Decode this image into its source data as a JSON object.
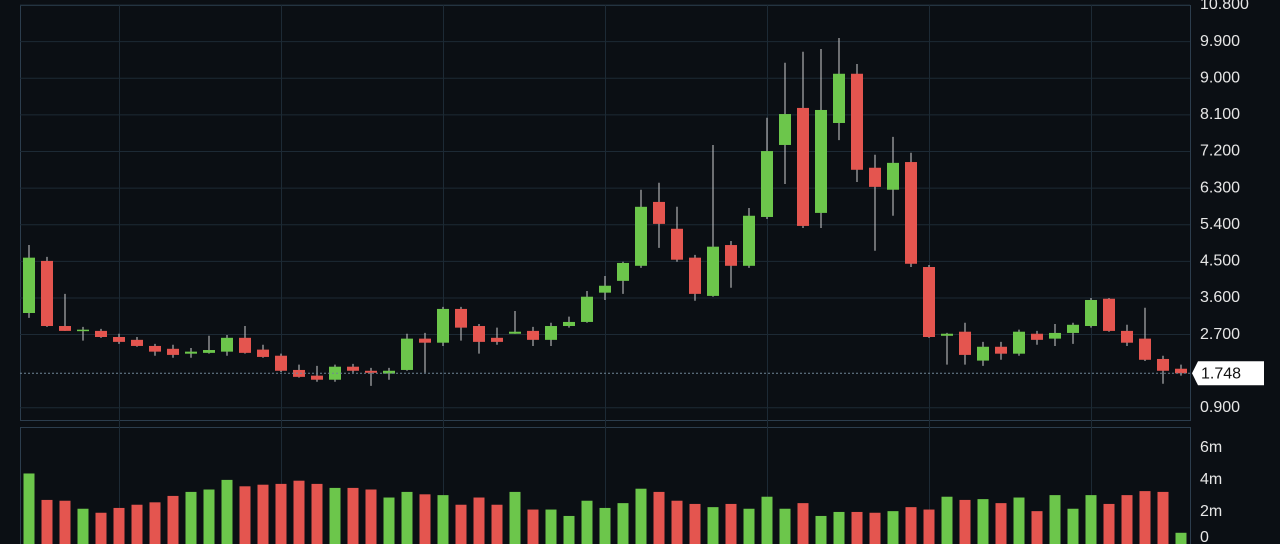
{
  "chart_data": [
    {
      "type": "candlestick",
      "open": [
        3.23,
        4.51,
        2.91,
        2.8,
        2.79,
        2.64,
        2.57,
        2.42,
        2.35,
        2.23,
        2.25,
        2.28,
        2.62,
        2.33,
        2.18,
        1.83,
        1.69,
        1.59,
        1.91,
        1.81,
        1.74,
        1.83,
        2.6,
        2.5,
        3.33,
        2.91,
        2.62,
        2.72,
        2.79,
        2.57,
        2.91,
        3.01,
        3.73,
        4.02,
        4.39,
        5.96,
        5.3,
        4.59,
        3.65,
        4.9,
        4.39,
        5.59,
        7.36,
        8.27,
        5.69,
        7.9,
        9.11,
        6.8,
        6.26,
        6.94,
        4.36,
        2.67,
        2.77,
        2.06,
        2.4,
        2.23,
        2.72,
        2.6,
        2.74,
        2.91,
        3.58,
        2.79,
        2.6,
        2.1,
        1.86
      ],
      "high": [
        4.9,
        4.61,
        3.7,
        2.89,
        2.84,
        2.72,
        2.64,
        2.47,
        2.45,
        2.37,
        2.67,
        2.69,
        2.91,
        2.45,
        2.23,
        1.96,
        1.93,
        1.96,
        1.98,
        1.88,
        1.88,
        2.72,
        2.74,
        3.38,
        3.38,
        2.96,
        2.87,
        3.28,
        2.89,
        2.99,
        3.14,
        3.77,
        4.14,
        4.49,
        6.26,
        6.43,
        5.84,
        4.66,
        7.36,
        5.0,
        5.81,
        8.03,
        9.38,
        9.65,
        9.72,
        9.99,
        9.35,
        7.12,
        7.56,
        7.17,
        4.41,
        2.74,
        2.99,
        2.52,
        2.52,
        2.82,
        2.79,
        2.96,
        2.99,
        3.6,
        3.6,
        2.94,
        3.36,
        2.18,
        1.96
      ],
      "low": [
        3.11,
        2.89,
        2.79,
        2.55,
        2.62,
        2.47,
        2.4,
        2.18,
        2.13,
        2.13,
        2.23,
        2.18,
        2.23,
        2.13,
        1.78,
        1.64,
        1.54,
        1.54,
        1.76,
        1.44,
        1.59,
        1.81,
        1.76,
        2.42,
        2.55,
        2.23,
        2.45,
        2.72,
        2.42,
        2.42,
        2.87,
        2.99,
        3.55,
        3.7,
        4.34,
        4.83,
        4.49,
        3.53,
        3.63,
        3.85,
        4.34,
        5.54,
        6.4,
        5.32,
        5.32,
        7.48,
        6.45,
        4.76,
        5.62,
        4.36,
        2.62,
        1.96,
        1.96,
        1.93,
        2.08,
        2.18,
        2.45,
        2.42,
        2.47,
        2.87,
        2.77,
        2.42,
        2.05,
        1.49,
        1.69
      ],
      "close": [
        4.59,
        2.91,
        2.79,
        2.82,
        2.64,
        2.52,
        2.42,
        2.28,
        2.2,
        2.28,
        2.32,
        2.62,
        2.25,
        2.15,
        1.81,
        1.66,
        1.59,
        1.91,
        1.81,
        1.76,
        1.81,
        2.6,
        2.5,
        3.33,
        2.87,
        2.52,
        2.52,
        2.77,
        2.57,
        2.91,
        3.01,
        3.63,
        3.9,
        4.46,
        5.84,
        5.42,
        4.54,
        3.7,
        4.86,
        4.39,
        5.62,
        7.21,
        8.12,
        5.37,
        8.22,
        9.11,
        6.75,
        6.33,
        6.92,
        4.44,
        2.64,
        2.72,
        2.2,
        2.4,
        2.23,
        2.77,
        2.57,
        2.74,
        2.94,
        3.55,
        2.79,
        2.5,
        2.08,
        1.81,
        1.748
      ],
      "up_color": "#6cc64b",
      "down_color": "#e4554f",
      "ylim": [
        0.6,
        10.8
      ],
      "yticks": [
        {
          "value": 0.9,
          "label": "0.900"
        },
        {
          "value": 2.7,
          "label": "2.700"
        },
        {
          "value": 3.6,
          "label": "3.600"
        },
        {
          "value": 4.5,
          "label": "4.500"
        },
        {
          "value": 5.4,
          "label": "5.400"
        },
        {
          "value": 6.3,
          "label": "6.300"
        },
        {
          "value": 7.2,
          "label": "7.200"
        },
        {
          "value": 8.1,
          "label": "8.100"
        },
        {
          "value": 9.0,
          "label": "9.000"
        },
        {
          "value": 9.9,
          "label": "9.900"
        },
        {
          "value": 10.8,
          "label": "10.800"
        }
      ],
      "last_price": {
        "value": 1.748,
        "label": "1.748"
      },
      "grid": true
    },
    {
      "type": "bar",
      "values": [
        4.4,
        2.75,
        2.7,
        2.2,
        1.95,
        2.25,
        2.45,
        2.6,
        3.0,
        3.25,
        3.4,
        4.0,
        3.6,
        3.7,
        3.75,
        3.95,
        3.75,
        3.5,
        3.5,
        3.4,
        2.9,
        3.25,
        3.1,
        3.05,
        2.45,
        2.9,
        2.45,
        3.25,
        2.15,
        2.15,
        1.75,
        2.7,
        2.25,
        2.55,
        3.45,
        3.25,
        2.7,
        2.5,
        2.3,
        2.5,
        2.2,
        2.95,
        2.2,
        2.55,
        1.75,
        2.0,
        2.0,
        1.95,
        2.05,
        2.3,
        2.15,
        2.95,
        2.75,
        2.8,
        2.55,
        2.9,
        2.05,
        3.05,
        2.2,
        3.05,
        2.5,
        3.05,
        3.3,
        3.25,
        0.7
      ],
      "colors": [
        "#6cc64b",
        "#e4554f",
        "#e4554f",
        "#6cc64b",
        "#e4554f",
        "#e4554f",
        "#e4554f",
        "#e4554f",
        "#e4554f",
        "#6cc64b",
        "#6cc64b",
        "#6cc64b",
        "#e4554f",
        "#e4554f",
        "#e4554f",
        "#e4554f",
        "#e4554f",
        "#6cc64b",
        "#e4554f",
        "#e4554f",
        "#6cc64b",
        "#6cc64b",
        "#e4554f",
        "#6cc64b",
        "#e4554f",
        "#e4554f",
        "#e4554f",
        "#6cc64b",
        "#e4554f",
        "#6cc64b",
        "#6cc64b",
        "#6cc64b",
        "#6cc64b",
        "#6cc64b",
        "#6cc64b",
        "#e4554f",
        "#e4554f",
        "#e4554f",
        "#6cc64b",
        "#e4554f",
        "#6cc64b",
        "#6cc64b",
        "#6cc64b",
        "#e4554f",
        "#6cc64b",
        "#6cc64b",
        "#e4554f",
        "#e4554f",
        "#6cc64b",
        "#e4554f",
        "#e4554f",
        "#6cc64b",
        "#e4554f",
        "#6cc64b",
        "#e4554f",
        "#6cc64b",
        "#e4554f",
        "#6cc64b",
        "#6cc64b",
        "#6cc64b",
        "#e4554f",
        "#e4554f",
        "#e4554f",
        "#e4554f",
        "#6cc64b"
      ],
      "ylim": [
        0,
        7.3
      ],
      "yticks": [
        0,
        {
          "value": 2,
          "label": "2m"
        },
        {
          "value": 4,
          "label": "4m"
        },
        {
          "value": 6,
          "label": "6m"
        }
      ],
      "grid": false
    }
  ]
}
